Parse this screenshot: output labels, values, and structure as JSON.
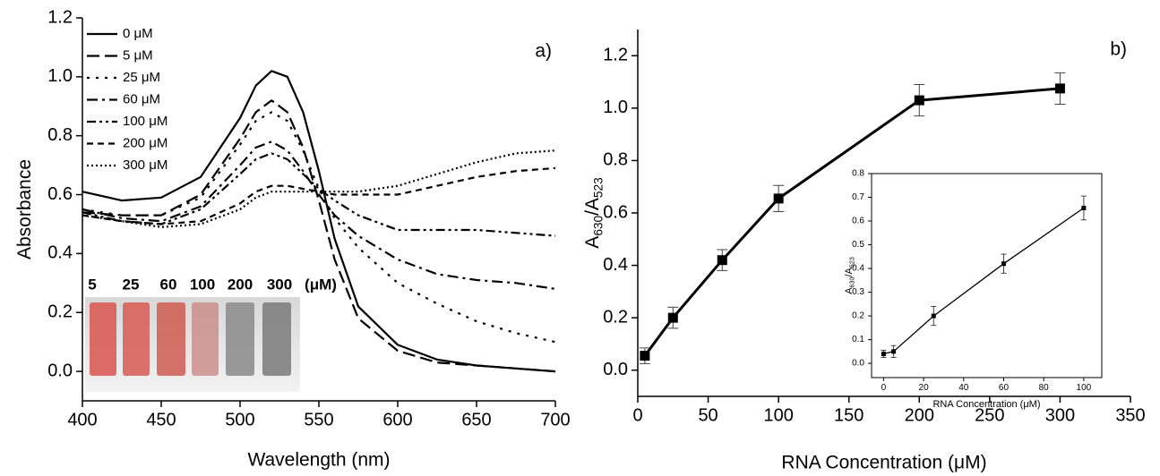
{
  "chart_data": [
    {
      "type": "line",
      "annotation": "a)",
      "x_label": "Wavelength (nm)",
      "y_label": [
        "Absorbance"
      ],
      "x": [
        400,
        425,
        450,
        475,
        500,
        510,
        520,
        530,
        540,
        550,
        560,
        575,
        600,
        625,
        650,
        675,
        700
      ],
      "series": [
        {
          "name": "0 μM",
          "color": "#000000",
          "dash": "solid",
          "values": [
            0.61,
            0.58,
            0.59,
            0.66,
            0.86,
            0.97,
            1.02,
            1.0,
            0.88,
            0.68,
            0.45,
            0.22,
            0.09,
            0.04,
            0.02,
            0.01,
            0.0
          ]
        },
        {
          "name": "5 μM",
          "color": "#000000",
          "dash": "dash",
          "values": [
            0.54,
            0.53,
            0.53,
            0.6,
            0.79,
            0.88,
            0.92,
            0.88,
            0.76,
            0.58,
            0.38,
            0.18,
            0.07,
            0.03,
            0.02,
            0.01,
            0.0
          ]
        },
        {
          "name": "25 μM",
          "color": "#000000",
          "dash": "dot",
          "values": [
            0.55,
            0.53,
            0.53,
            0.59,
            0.77,
            0.85,
            0.88,
            0.85,
            0.75,
            0.62,
            0.52,
            0.42,
            0.3,
            0.23,
            0.17,
            0.13,
            0.1
          ]
        },
        {
          "name": "60 μM",
          "color": "#000000",
          "dash": "dash-dot",
          "values": [
            0.55,
            0.52,
            0.51,
            0.56,
            0.7,
            0.76,
            0.78,
            0.75,
            0.68,
            0.6,
            0.53,
            0.46,
            0.38,
            0.33,
            0.31,
            0.3,
            0.28
          ]
        },
        {
          "name": "100 μM",
          "color": "#000000",
          "dash": "dash-dot-dot",
          "values": [
            0.54,
            0.51,
            0.5,
            0.55,
            0.67,
            0.72,
            0.74,
            0.72,
            0.67,
            0.62,
            0.58,
            0.53,
            0.48,
            0.48,
            0.48,
            0.47,
            0.46
          ]
        },
        {
          "name": "200 μM",
          "color": "#000000",
          "dash": "short-dash",
          "values": [
            0.53,
            0.51,
            0.5,
            0.51,
            0.57,
            0.61,
            0.63,
            0.63,
            0.62,
            0.61,
            0.6,
            0.6,
            0.6,
            0.63,
            0.66,
            0.68,
            0.69
          ]
        },
        {
          "name": "300 μM",
          "color": "#000000",
          "dash": "dense-dot",
          "values": [
            0.53,
            0.51,
            0.49,
            0.5,
            0.55,
            0.59,
            0.61,
            0.61,
            0.61,
            0.61,
            0.61,
            0.61,
            0.63,
            0.67,
            0.71,
            0.74,
            0.75
          ]
        }
      ],
      "xlim": [
        400,
        700
      ],
      "xticks": [
        400,
        450,
        500,
        550,
        600,
        650,
        700
      ],
      "ylim": [
        -0.1,
        1.2
      ],
      "yticks": [
        {
          "value": 0,
          "label": "0.0"
        },
        0.2,
        0.4,
        0.6,
        0.8,
        {
          "value": 1,
          "label": "1.0"
        },
        1.2
      ],
      "photo_labels": [
        "5",
        "25",
        "60",
        "100",
        "200",
        "300",
        "(μM)"
      ]
    },
    {
      "type": "line",
      "annotation": "b)",
      "x_label": "RNA Concentration (μM)",
      "y_label": [
        "A",
        "630",
        "/A",
        "523"
      ],
      "x": [
        5,
        25,
        60,
        100,
        200,
        300
      ],
      "values": [
        0.055,
        0.2,
        0.42,
        0.655,
        1.03,
        1.075
      ],
      "errors": [
        0.03,
        0.04,
        0.04,
        0.05,
        0.06,
        0.06
      ],
      "color": "#000000",
      "xlim": [
        0,
        350
      ],
      "xticks": [
        0,
        50,
        100,
        150,
        200,
        250,
        300,
        350
      ],
      "ylim": [
        -0.1,
        1.3
      ],
      "yticks": [
        {
          "value": 0,
          "label": "0.0"
        },
        0.2,
        0.4,
        0.6,
        0.8,
        {
          "value": 1,
          "label": "1.0"
        },
        1.2
      ]
    },
    {
      "type": "line",
      "x_label": "RNA Concentration (μM)",
      "y_label": [
        "A",
        "630",
        "/A",
        "523"
      ],
      "x": [
        0,
        5,
        25,
        60,
        100
      ],
      "values": [
        0.04,
        0.05,
        0.2,
        0.42,
        0.655
      ],
      "errors": [
        0.015,
        0.025,
        0.04,
        0.04,
        0.05
      ],
      "color": "#000000",
      "xlim": [
        -6,
        109
      ],
      "xticks": [
        0,
        20,
        40,
        60,
        80,
        100
      ],
      "ylim": [
        -0.06,
        0.8
      ],
      "yticks": [
        {
          "value": 0,
          "label": "0.0"
        },
        0.1,
        0.2,
        0.3,
        0.4,
        0.5,
        0.6,
        0.7,
        0.8
      ]
    }
  ]
}
